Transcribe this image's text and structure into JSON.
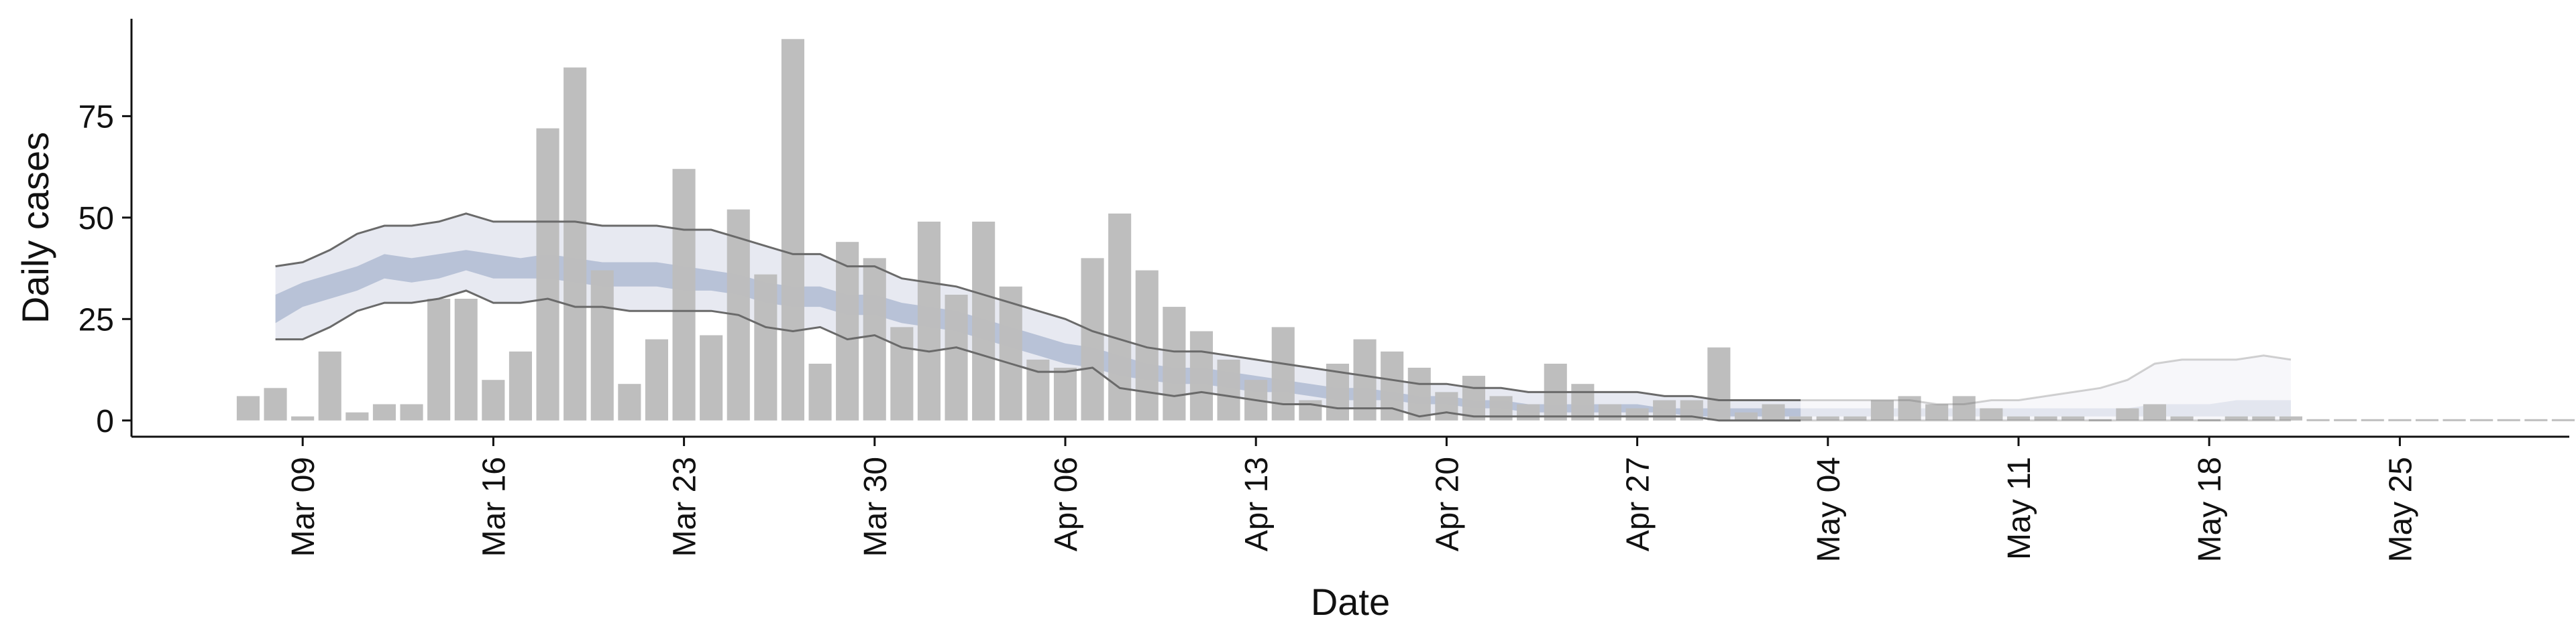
{
  "chart_data": {
    "type": "bar",
    "xlabel": "Date",
    "ylabel": "Daily cases",
    "x_tick_labels": [
      "Mar 09",
      "Mar 16",
      "Mar 23",
      "Mar 30",
      "Apr 06",
      "Apr 13",
      "Apr 20",
      "Apr 27",
      "May 04",
      "May 11",
      "May 18",
      "May 25"
    ],
    "y_tick_labels": [
      "0",
      "25",
      "50",
      "75"
    ],
    "ylim": [
      -4,
      99
    ],
    "x_start_date": "2020-03-07",
    "bars": {
      "name": "Daily cases",
      "color": "#bdbdbd",
      "values": [
        6,
        8,
        1,
        17,
        2,
        4,
        4,
        30,
        30,
        10,
        17,
        72,
        87,
        37,
        9,
        20,
        62,
        21,
        52,
        36,
        94,
        14,
        44,
        40,
        23,
        49,
        31,
        49,
        33,
        15,
        13,
        40,
        51,
        37,
        28,
        22,
        15,
        10,
        23,
        5,
        14,
        20,
        17,
        13,
        7,
        11,
        6,
        4,
        14,
        9,
        4,
        3,
        5,
        5,
        18,
        2,
        4,
        1,
        1,
        1,
        5,
        6,
        4,
        6,
        3,
        1,
        1,
        1,
        0,
        3,
        4,
        1,
        0,
        1,
        1,
        1,
        0,
        0,
        0,
        0,
        0,
        0,
        0,
        0,
        0,
        0,
        0,
        0,
        0,
        0,
        0,
        0,
        0,
        0,
        0,
        0,
        0,
        0,
        0,
        0,
        0,
        0,
        0,
        1
      ]
    },
    "band_start_index": 1,
    "band_lower_90": [
      20,
      20,
      23,
      27,
      29,
      29,
      30,
      32,
      29,
      29,
      30,
      28,
      28,
      27,
      27,
      27,
      27,
      26,
      23,
      22,
      23,
      20,
      21,
      18,
      17,
      18,
      16,
      14,
      12,
      12,
      13,
      8,
      7,
      6,
      7,
      6,
      5,
      4,
      4,
      3,
      3,
      3,
      1,
      2,
      1,
      1,
      1,
      1,
      1,
      1,
      1,
      1,
      1,
      0,
      0,
      0,
      0,
      0,
      0,
      0,
      0,
      0,
      0,
      0,
      0,
      0,
      0,
      0,
      0,
      0,
      0,
      0,
      0,
      0,
      0
    ],
    "band_upper_90": [
      38,
      39,
      42,
      46,
      48,
      48,
      49,
      51,
      49,
      49,
      49,
      49,
      48,
      48,
      48,
      47,
      47,
      45,
      43,
      41,
      41,
      38,
      38,
      35,
      34,
      33,
      31,
      29,
      27,
      25,
      22,
      20,
      18,
      17,
      17,
      16,
      15,
      14,
      13,
      12,
      11,
      10,
      9,
      9,
      8,
      8,
      7,
      7,
      7,
      7,
      7,
      6,
      6,
      5,
      5,
      5,
      5,
      5,
      5,
      5,
      5,
      4,
      4,
      5,
      5,
      6,
      7,
      8,
      10,
      14,
      15,
      15,
      15,
      16,
      15
    ],
    "band_lower_50": [
      24,
      28,
      30,
      32,
      35,
      34,
      35,
      37,
      35,
      35,
      35,
      34,
      33,
      33,
      33,
      32,
      32,
      31,
      29,
      28,
      28,
      26,
      26,
      24,
      23,
      22,
      20,
      18,
      16,
      14,
      13,
      11,
      10,
      9,
      9,
      8,
      7,
      7,
      6,
      5,
      5,
      5,
      4,
      4,
      3,
      3,
      2,
      2,
      2,
      2,
      2,
      2,
      1,
      1,
      1,
      1,
      1,
      1,
      1,
      1,
      1,
      1,
      1,
      1,
      1,
      1,
      1,
      1,
      1,
      1,
      1,
      1,
      1,
      1,
      1
    ],
    "band_upper_50": [
      31,
      34,
      36,
      38,
      41,
      40,
      41,
      42,
      41,
      40,
      41,
      40,
      39,
      39,
      39,
      38,
      37,
      36,
      34,
      33,
      33,
      31,
      31,
      29,
      28,
      27,
      25,
      23,
      21,
      19,
      18,
      16,
      14,
      13,
      13,
      12,
      11,
      10,
      9,
      8,
      8,
      7,
      6,
      6,
      5,
      5,
      4,
      4,
      4,
      4,
      4,
      3,
      3,
      3,
      3,
      3,
      3,
      3,
      3,
      3,
      3,
      3,
      3,
      3,
      3,
      3,
      3,
      3,
      3,
      4,
      4,
      4,
      5,
      5,
      5
    ],
    "band_fade_index": 57,
    "colors": {
      "band_90": "#c9cee0",
      "band_50": "#9aa8c6",
      "band_outline": "#6a6a6a",
      "axis": "#111111",
      "vline": "#222222"
    },
    "vline_index": 104,
    "grid": false
  }
}
